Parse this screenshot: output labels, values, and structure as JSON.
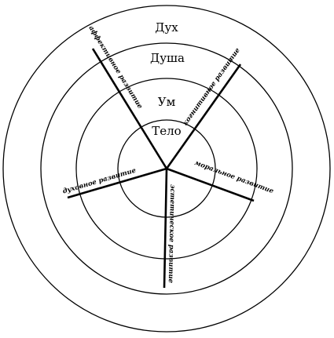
{
  "levels": [
    {
      "key": "spirit",
      "label": "Дух"
    },
    {
      "key": "soul",
      "label": "Душа"
    },
    {
      "key": "mind",
      "label": "Ум"
    },
    {
      "key": "body",
      "label": "Тело"
    }
  ],
  "axes": [
    {
      "key": "affective",
      "label": "аффективное развитие"
    },
    {
      "key": "cognitive",
      "label": "когнитивное развитие"
    },
    {
      "key": "moral",
      "label": "моральное развитие"
    },
    {
      "key": "aesthetic",
      "label": "эстетическое развитие"
    },
    {
      "key": "spiritual",
      "label": "духовное развитие"
    }
  ]
}
